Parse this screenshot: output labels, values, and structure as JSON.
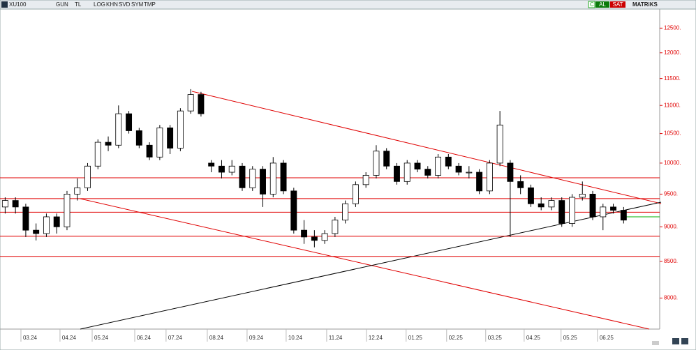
{
  "toolbar": {
    "symbol": "XU100",
    "buttons": [
      "GUN",
      "TL",
      "LOG",
      "KHN",
      "SVD",
      "SYM",
      "TMP"
    ],
    "buy": "AL",
    "sell": "SAT",
    "brand": "MATRiKS",
    "c": "C"
  },
  "chart_data": {
    "type": "candlestick",
    "log_scale": true,
    "ylim": [
      7600,
      12900
    ],
    "yticks": [
      {
        "value": 12500,
        "label": "12500."
      },
      {
        "value": 12000,
        "label": "12000."
      },
      {
        "value": 11500,
        "label": "11500."
      },
      {
        "value": 11000,
        "label": "11000."
      },
      {
        "value": 10500,
        "label": "10500."
      },
      {
        "value": 10000,
        "label": "10000."
      },
      {
        "value": 9500,
        "label": "9500."
      },
      {
        "value": 9000,
        "label": "9000."
      },
      {
        "value": 8500,
        "label": "8500."
      },
      {
        "value": 8000,
        "label": "8000."
      }
    ],
    "xlim": [
      -0.5,
      63.5
    ],
    "xticks": [
      {
        "value": 1.53,
        "label": "03.24"
      },
      {
        "value": 5.32,
        "label": "04.24"
      },
      {
        "value": 8.44,
        "label": "05.24"
      },
      {
        "value": 12.57,
        "label": "06.24"
      },
      {
        "value": 15.61,
        "label": "07.24"
      },
      {
        "value": 19.61,
        "label": "08.24"
      },
      {
        "value": 23.47,
        "label": "09.24"
      },
      {
        "value": 27.26,
        "label": "10.24"
      },
      {
        "value": 31.19,
        "label": "11.24"
      },
      {
        "value": 35.05,
        "label": "12.24"
      },
      {
        "value": 38.9,
        "label": "01.25"
      },
      {
        "value": 42.83,
        "label": "02.25"
      },
      {
        "value": 46.62,
        "label": "03.25"
      },
      {
        "value": 50.35,
        "label": "04.25"
      },
      {
        "value": 53.93,
        "label": "05.25"
      },
      {
        "value": 57.46,
        "label": "06.25"
      }
    ],
    "open": [
      9300,
      9400,
      9300,
      8950,
      8900,
      9150,
      9000,
      9500,
      9600,
      9950,
      10350,
      10300,
      10850,
      10550,
      10300,
      10100,
      10600,
      10250,
      10900,
      11200,
      10000,
      9950,
      9850,
      9950,
      9600,
      9900,
      9500,
      10000,
      9550,
      8950,
      8850,
      8800,
      8900,
      9100,
      9350,
      9650,
      9800,
      10200,
      9950,
      9700,
      10000,
      9900,
      9800,
      10100,
      9950,
      9850,
      9850,
      9550,
      10000,
      10000,
      9700,
      9600,
      9350,
      9300,
      9400,
      9050,
      9450,
      9500,
      9150,
      9300,
      9250
    ],
    "high": [
      9450,
      9450,
      9350,
      9050,
      9200,
      9200,
      9550,
      9750,
      10000,
      10400,
      10450,
      11000,
      10900,
      10600,
      10350,
      10650,
      10650,
      10950,
      11300,
      11250,
      10050,
      10050,
      10050,
      10000,
      9950,
      9950,
      10100,
      10050,
      9600,
      9100,
      8950,
      8950,
      9150,
      9400,
      9700,
      9850,
      10300,
      10250,
      10000,
      10050,
      10050,
      9950,
      10150,
      10150,
      10000,
      9950,
      9900,
      10050,
      10900,
      10050,
      9800,
      9650,
      9450,
      9450,
      9450,
      9500,
      9700,
      9550,
      9350,
      9350,
      9300
    ],
    "low": [
      9200,
      9200,
      8850,
      8800,
      8850,
      8900,
      8950,
      9400,
      9550,
      9900,
      10200,
      10250,
      10500,
      10250,
      10050,
      10050,
      10150,
      10200,
      10850,
      10800,
      9850,
      9750,
      9800,
      9550,
      9550,
      9300,
      9450,
      9500,
      8900,
      8750,
      8700,
      8750,
      8850,
      9050,
      9300,
      9600,
      9750,
      9900,
      9650,
      9650,
      9850,
      9750,
      9750,
      9900,
      9800,
      9750,
      9500,
      9500,
      9950,
      8850,
      9500,
      9300,
      9250,
      9250,
      9000,
      9000,
      9400,
      9100,
      8950,
      9200,
      9050
    ],
    "close": [
      9400,
      9300,
      8950,
      8900,
      9150,
      9000,
      9500,
      9600,
      9950,
      10350,
      10300,
      10850,
      10550,
      10300,
      10100,
      10600,
      10250,
      10900,
      11200,
      10850,
      9950,
      9850,
      9950,
      9600,
      9900,
      9500,
      10000,
      9550,
      8950,
      8850,
      8800,
      8900,
      9100,
      9350,
      9650,
      9800,
      10200,
      9950,
      9700,
      10000,
      9900,
      9800,
      10100,
      9950,
      9850,
      9850,
      9550,
      10000,
      10650,
      9700,
      9600,
      9350,
      9300,
      9400,
      9050,
      9450,
      9500,
      9150,
      9300,
      9250,
      9100
    ],
    "hlines": [
      9760,
      9430,
      9220,
      8860,
      8570
    ],
    "hline_color": "#e00000",
    "support": {
      "value": 9150,
      "color": "#00b000"
    }
  }
}
